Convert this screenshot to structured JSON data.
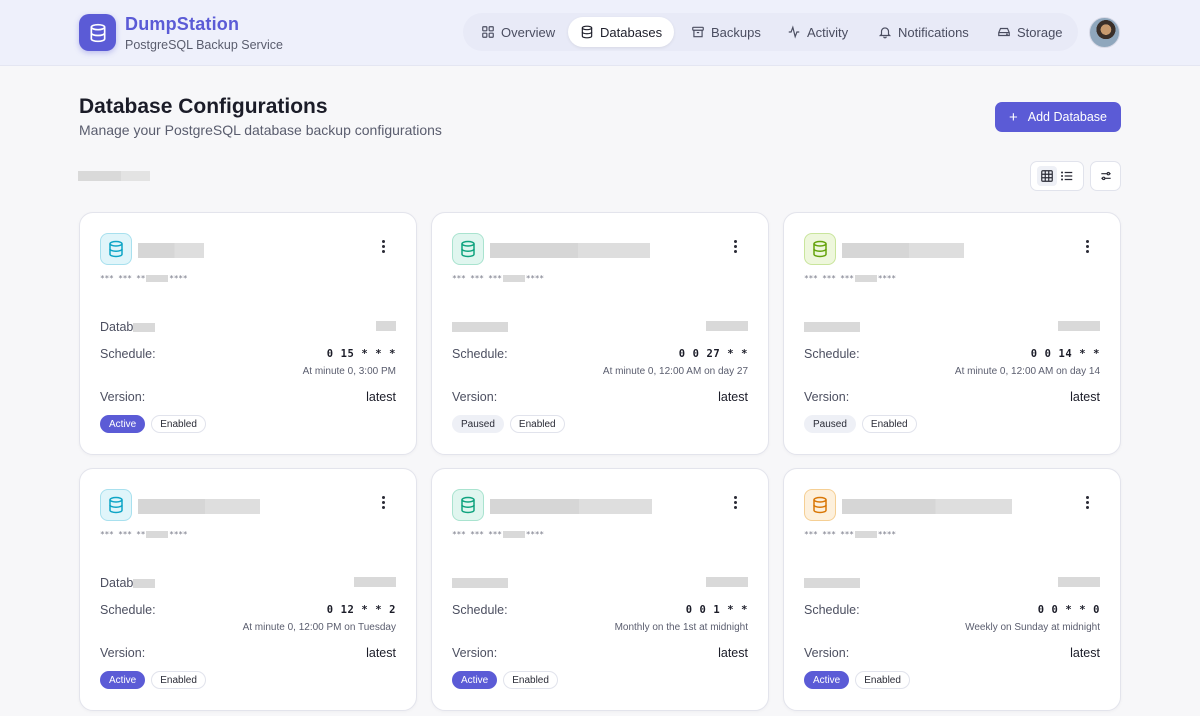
{
  "brand": {
    "name": "DumpStation",
    "subtitle": "PostgreSQL Backup Service"
  },
  "nav": [
    {
      "label": "Overview",
      "icon": "grid-icon"
    },
    {
      "label": "Databases",
      "icon": "database-icon",
      "active": true
    },
    {
      "label": "Backups",
      "icon": "archive-icon"
    },
    {
      "label": "Activity",
      "icon": "activity-icon"
    },
    {
      "label": "Notifications",
      "icon": "bell-icon"
    },
    {
      "label": "Storage",
      "icon": "hard-drive-icon"
    }
  ],
  "page": {
    "title": "Database Configurations",
    "subtitle": "Manage your PostgreSQL database backup configurations",
    "add_button": "Add Database"
  },
  "labels": {
    "schedule": "Schedule:",
    "version": "Version:",
    "database_prefix": "Datab"
  },
  "colors": {
    "accent": "#5b5bd6",
    "icon_blue": "#0ea5c6",
    "icon_green": "#10a37f",
    "icon_lime": "#65a30d",
    "icon_orange": "#d97706"
  },
  "cards": [
    {
      "cron": "0 15 * * *",
      "cron_desc": "At minute 0, 3:00 PM",
      "version": "latest",
      "status": "Active",
      "enabled": "Enabled",
      "conn_prefix": "*** *** **",
      "conn_suffix": "****"
    },
    {
      "cron": "0 0 27 * *",
      "cron_desc": "At minute 0, 12:00 AM on day 27",
      "version": "latest",
      "status": "Paused",
      "enabled": "Enabled",
      "conn_prefix": "*** *** ***",
      "conn_suffix": "****"
    },
    {
      "cron": "0 0 14 * *",
      "cron_desc": "At minute 0, 12:00 AM on day 14",
      "version": "latest",
      "status": "Paused",
      "enabled": "Enabled",
      "conn_prefix": "*** *** ***",
      "conn_suffix": "****"
    },
    {
      "cron": "0 12 * * 2",
      "cron_desc": "At minute 0, 12:00 PM on Tuesday",
      "version": "latest",
      "status": "Active",
      "enabled": "Enabled",
      "conn_prefix": "*** *** **",
      "conn_suffix": "****"
    },
    {
      "cron": "0 0 1 * *",
      "cron_desc": "Monthly on the 1st at midnight",
      "version": "latest",
      "status": "Active",
      "enabled": "Enabled",
      "conn_prefix": "*** *** ***",
      "conn_suffix": "****"
    },
    {
      "cron": "0 0 * * 0",
      "cron_desc": "Weekly on Sunday at midnight",
      "version": "latest",
      "status": "Active",
      "enabled": "Enabled",
      "conn_prefix": "*** *** ***",
      "conn_suffix": "****"
    }
  ]
}
